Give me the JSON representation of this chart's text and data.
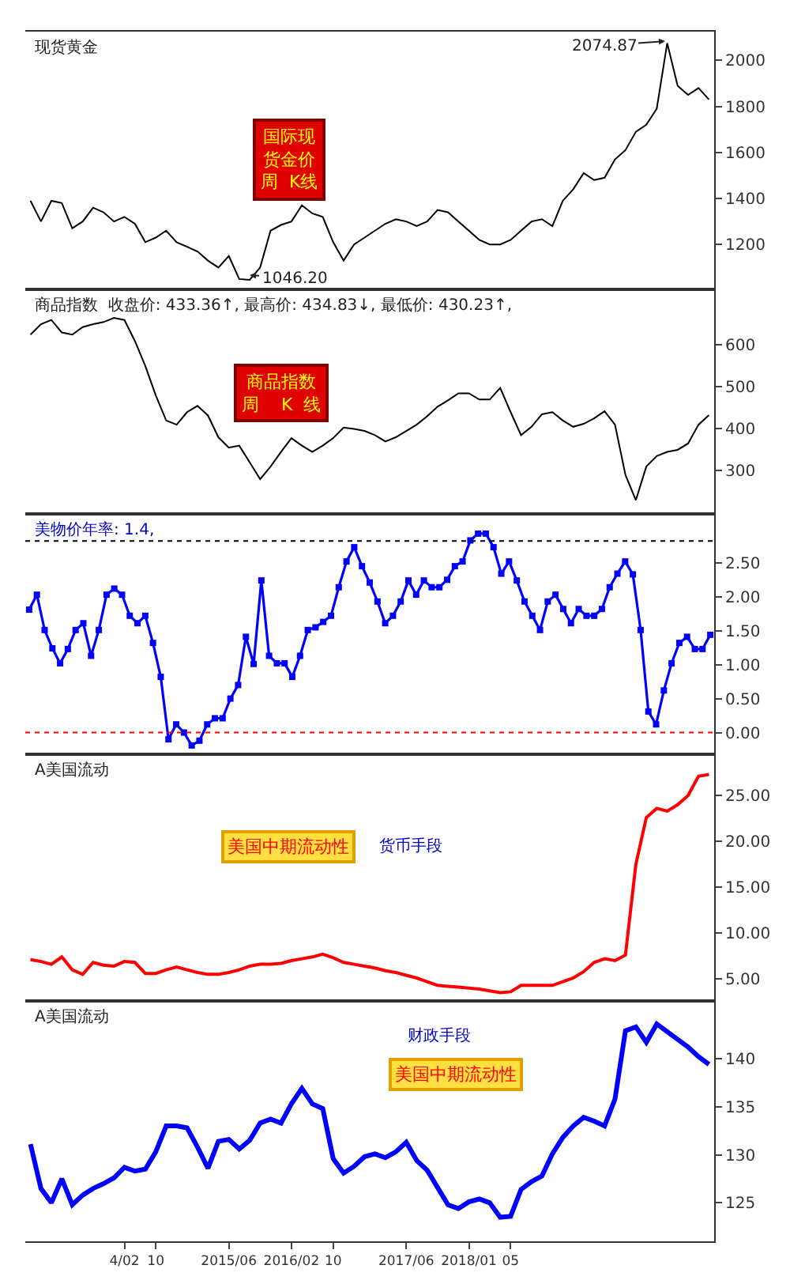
{
  "chart_data": [
    {
      "type": "line",
      "title": "现货黄金",
      "ylim": [
        1005,
        2125
      ],
      "yticks": [
        1200,
        1400,
        1600,
        1800,
        2000
      ],
      "tick_labels": "y",
      "grid": false,
      "categories": [
        null,
        null,
        null,
        null,
        null,
        null,
        null,
        null,
        null,
        null,
        null,
        null,
        null,
        null,
        null,
        null,
        null,
        null,
        null,
        null,
        null,
        null,
        null,
        null,
        null,
        null,
        null,
        null,
        null,
        null,
        null,
        null,
        null,
        null,
        null,
        null,
        null,
        null,
        null,
        null,
        null,
        null,
        null,
        null,
        null,
        null,
        null,
        null,
        null,
        null,
        null,
        null,
        null,
        null,
        null,
        null,
        null,
        null,
        null,
        null,
        null,
        null,
        null,
        null,
        null,
        null
      ],
      "annotations": [
        "国际现货金价周  K线",
        "2074.87",
        "1046.20"
      ],
      "series": [
        {
          "color": "#000000",
          "values": [
            1390,
            1300,
            1390,
            1380,
            1270,
            1300,
            1360,
            1340,
            1300,
            1320,
            1290,
            1210,
            1230,
            1260,
            1210,
            1190,
            1170,
            1130,
            1100,
            1150,
            1050,
            1046.2,
            1100,
            1260,
            1285,
            1300,
            1370,
            1335,
            1320,
            1210,
            1130,
            1200,
            1230,
            1260,
            1290,
            1310,
            1300,
            1280,
            1300,
            1350,
            1340,
            1300,
            1260,
            1220,
            1200,
            1200,
            1220,
            1260,
            1300,
            1310,
            1280,
            1390,
            1440,
            1510,
            1480,
            1490,
            1570,
            1610,
            1690,
            1720,
            1790,
            2074.87,
            1890,
            1850,
            1880,
            1830
          ]
        }
      ]
    },
    {
      "type": "line",
      "title": "商品指数  收盘价: 433.36↑, 最高价: 434.83↓, 最低价: 430.23↑,",
      "ylim": [
        197,
        733
      ],
      "yticks": [
        300,
        400,
        500,
        600
      ],
      "tick_labels": "y",
      "grid": false,
      "categories": [
        null,
        null,
        null,
        null,
        null,
        null,
        null,
        null,
        null,
        null,
        null,
        null,
        null,
        null,
        null,
        null,
        null,
        null,
        null,
        null,
        null,
        null,
        null,
        null,
        null,
        null,
        null,
        null,
        null,
        null,
        null,
        null,
        null,
        null,
        null,
        null,
        null,
        null,
        null,
        null,
        null,
        null,
        null,
        null,
        null,
        null,
        null,
        null,
        null,
        null,
        null,
        null,
        null,
        null,
        null,
        null,
        null,
        null,
        null,
        null,
        null,
        null,
        null,
        null,
        null,
        null
      ],
      "annotations": [
        "商品指数周    K  线"
      ],
      "series": [
        {
          "color": "#000000",
          "values": [
            625,
            650,
            660,
            630,
            625,
            643,
            650,
            655,
            665,
            660,
            610,
            550,
            480,
            420,
            410,
            440,
            455,
            432,
            380,
            355,
            360,
            320,
            280,
            310,
            345,
            378,
            360,
            345,
            360,
            378,
            403,
            400,
            395,
            385,
            370,
            380,
            395,
            410,
            430,
            453,
            468,
            485,
            485,
            470,
            470,
            498,
            440,
            385,
            405,
            435,
            440,
            420,
            405,
            412,
            425,
            442,
            410,
            290,
            230,
            310,
            335,
            345,
            350,
            365,
            410,
            433
          ]
        }
      ]
    },
    {
      "type": "line",
      "title": "美物价年率: 1.4,",
      "ylim": [
        -0.32,
        3.22
      ],
      "yticks": [
        {
          "value": 0,
          "label": "0.00"
        },
        {
          "value": 0.5,
          "label": "0.50"
        },
        {
          "value": 1,
          "label": "1.00"
        },
        {
          "value": 1.5,
          "label": "1.50"
        },
        {
          "value": 2,
          "label": "2.00"
        },
        {
          "value": 2.5,
          "label": "2.50"
        }
      ],
      "tick_labels": "y",
      "grid": false,
      "marker": "square",
      "categories": [
        null,
        null,
        null,
        null,
        null,
        null,
        null,
        null,
        null,
        null,
        null,
        null,
        null,
        null,
        null,
        null,
        null,
        null,
        null,
        null,
        null,
        null,
        null,
        null,
        null,
        null,
        null,
        null,
        null,
        null,
        null,
        null,
        null,
        null,
        null,
        null,
        null,
        null,
        null,
        null,
        null,
        null,
        null,
        null,
        null,
        null,
        null,
        null,
        null,
        null,
        null,
        null,
        null,
        null,
        null,
        null,
        null,
        null,
        null,
        null,
        null,
        null,
        null,
        null,
        null,
        null,
        null,
        null,
        null,
        null,
        null,
        null,
        null,
        null,
        null,
        null,
        null,
        null,
        null,
        null,
        null,
        null,
        null,
        null,
        null,
        null,
        null,
        null,
        null
      ],
      "ref_lines": [
        {
          "axis": "y",
          "value": 0,
          "color": "#ff0000",
          "line_style": "dotted"
        },
        {
          "axis": "y",
          "value": 2.82,
          "color": "#000000",
          "line_style": "dotted"
        }
      ],
      "series": [
        {
          "color": "#0000ff",
          "values": [
            1.81,
            2.03,
            1.51,
            1.24,
            1.02,
            1.23,
            1.51,
            1.61,
            1.13,
            1.51,
            2.03,
            2.12,
            2.03,
            1.72,
            1.61,
            1.72,
            1.32,
            0.82,
            -0.1,
            0.12,
            0,
            -0.19,
            -0.12,
            0.12,
            0.21,
            0.21,
            0.5,
            0.7,
            1.41,
            1.01,
            2.24,
            1.13,
            1.02,
            1.02,
            0.82,
            1.13,
            1.51,
            1.55,
            1.63,
            1.72,
            2.14,
            2.52,
            2.73,
            2.45,
            2.21,
            1.93,
            1.61,
            1.72,
            1.93,
            2.24,
            2.03,
            2.24,
            2.14,
            2.14,
            2.25,
            2.45,
            2.52,
            2.83,
            2.93,
            2.93,
            2.73,
            2.34,
            2.52,
            2.24,
            1.93,
            1.72,
            1.51,
            1.93,
            2.03,
            1.82,
            1.61,
            1.82,
            1.72,
            1.72,
            1.82,
            2.14,
            2.34,
            2.52,
            2.33,
            1.51,
            0.31,
            0.12,
            0.62,
            1.02,
            1.32,
            1.41,
            1.23,
            1.23,
            1.44
          ]
        }
      ]
    },
    {
      "type": "line",
      "title": "A美国流动",
      "ylim": [
        2.6,
        29.5
      ],
      "yticks": [
        {
          "value": 5,
          "label": "5.00"
        },
        {
          "value": 10,
          "label": "10.00"
        },
        {
          "value": 15,
          "label": "15.00"
        },
        {
          "value": 20,
          "label": "20.00"
        },
        {
          "value": 25,
          "label": "25.00"
        }
      ],
      "tick_labels": "y",
      "grid": false,
      "categories": [
        null,
        null,
        null,
        null,
        null,
        null,
        null,
        null,
        null,
        null,
        null,
        null,
        null,
        null,
        null,
        null,
        null,
        null,
        null,
        null,
        null,
        null,
        null,
        null,
        null,
        null,
        null,
        null,
        null,
        null,
        null,
        null,
        null,
        null,
        null,
        null,
        null,
        null,
        null,
        null,
        null,
        null,
        null,
        null,
        null,
        null,
        null,
        null,
        null,
        null,
        null,
        null,
        null,
        null,
        null,
        null,
        null,
        null,
        null,
        null,
        null,
        null,
        null,
        null,
        null,
        null
      ],
      "annotations": [
        "美国中期流动性",
        "货币手段"
      ],
      "series": [
        {
          "color": "#ff0000",
          "values": [
            7.1,
            6.9,
            6.6,
            7.4,
            6.0,
            5.5,
            6.8,
            6.5,
            6.4,
            6.9,
            6.8,
            5.6,
            5.6,
            6.0,
            6.3,
            6.0,
            5.7,
            5.5,
            5.5,
            5.7,
            6.0,
            6.4,
            6.6,
            6.6,
            6.7,
            7.0,
            7.2,
            7.4,
            7.7,
            7.3,
            6.8,
            6.6,
            6.4,
            6.2,
            5.9,
            5.7,
            5.4,
            5.1,
            4.7,
            4.3,
            4.2,
            4.1,
            4.0,
            3.9,
            3.7,
            3.5,
            3.6,
            4.3,
            4.3,
            4.3,
            4.3,
            4.7,
            5.1,
            5.8,
            6.8,
            7.2,
            7.0,
            7.6,
            17.5,
            22.6,
            23.6,
            23.3,
            24.0,
            25.0,
            27.1,
            27.3
          ]
        }
      ]
    },
    {
      "type": "line",
      "title": "A美国流动",
      "ylim": [
        121,
        146
      ],
      "yticks": [
        125,
        130,
        135,
        140
      ],
      "grid": false,
      "categories": [
        null,
        null,
        null,
        null,
        null,
        null,
        null,
        null,
        null,
        "4/02",
        null,
        null,
        "10",
        null,
        null,
        null,
        null,
        null,
        null,
        "2015/06",
        null,
        null,
        null,
        null,
        null,
        "2016/02",
        null,
        null,
        null,
        "10",
        null,
        null,
        null,
        null,
        null,
        null,
        "2017/06",
        null,
        null,
        null,
        null,
        null,
        "2018/01",
        null,
        null,
        null,
        "05",
        null,
        null,
        null,
        null,
        null,
        null,
        null,
        null,
        null,
        null,
        null,
        null,
        null,
        null,
        null,
        null,
        null,
        null,
        null
      ],
      "annotations": [
        "财政手段",
        "美国中期流动性"
      ],
      "series": [
        {
          "color": "#0000ff",
          "values": [
            131.1,
            126.5,
            125.0,
            127.5,
            124.8,
            125.8,
            126.5,
            127.0,
            127.6,
            128.7,
            128.3,
            128.5,
            130.3,
            133.0,
            133.0,
            132.8,
            130.8,
            128.6,
            131.4,
            131.6,
            130.6,
            131.5,
            133.3,
            133.7,
            133.3,
            135.3,
            136.9,
            135.3,
            134.8,
            129.6,
            128.1,
            128.8,
            129.8,
            130.1,
            129.7,
            130.3,
            131.3,
            129.4,
            128.4,
            126.6,
            124.8,
            124.4,
            125.1,
            125.4,
            125.0,
            123.5,
            123.6,
            126.4,
            127.2,
            127.8,
            130.1,
            131.8,
            133.0,
            133.9,
            133.5,
            133.0,
            135.8,
            142.9,
            143.3,
            141.7,
            143.6,
            142.8,
            142.0,
            141.2,
            140.2,
            139.4
          ]
        }
      ]
    }
  ]
}
